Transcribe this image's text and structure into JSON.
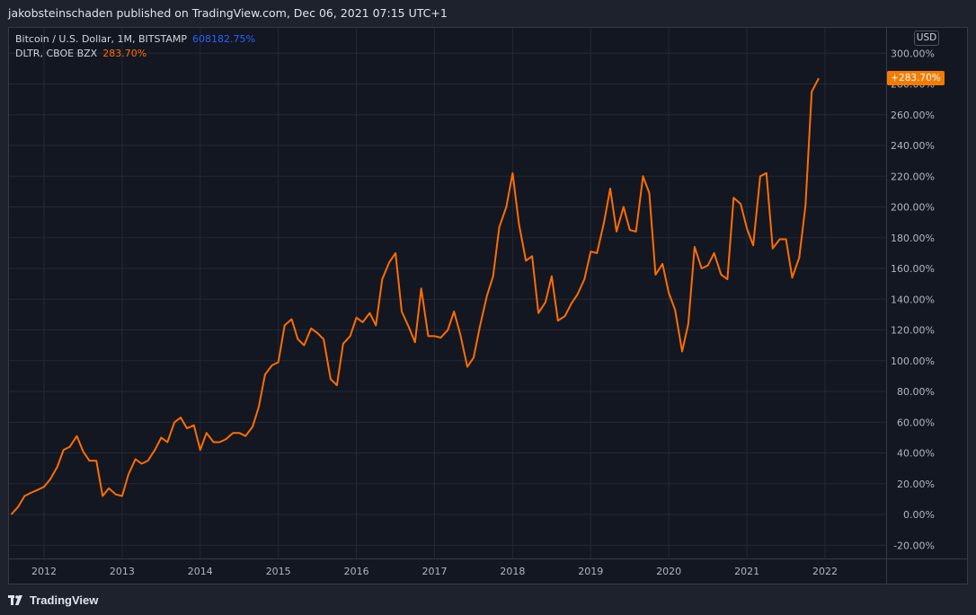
{
  "header": {
    "text": "jakobsteinschaden published on TradingView.com, Dec 06, 2021 07:15 UTC+1"
  },
  "legend": [
    {
      "name": "Bitcoin / U.S. Dollar, 1M, BITSTAMP",
      "value": "608182.75%",
      "color": "#2962ff"
    },
    {
      "name": "DLTR, CBOE BZX",
      "value": "283.70%",
      "color": "#ff6d00"
    }
  ],
  "currency_badge": "USD",
  "last_value_label": "+283.70%",
  "footer": {
    "brand": "TradingView"
  },
  "colors": {
    "series": "#ff6d00",
    "grid": "#242834",
    "axis_text": "#b2b5be",
    "background": "#131722"
  },
  "chart_data": {
    "type": "line",
    "title": "",
    "xlabel": "",
    "ylabel": "",
    "x_ticks": [
      "2012",
      "2013",
      "2014",
      "2015",
      "2016",
      "2017",
      "2018",
      "2019",
      "2020",
      "2021",
      "2022"
    ],
    "y_ticks": [
      "300.00%",
      "280.00%",
      "260.00%",
      "240.00%",
      "220.00%",
      "200.00%",
      "180.00%",
      "160.00%",
      "140.00%",
      "120.00%",
      "100.00%",
      "80.00%",
      "60.00%",
      "40.00%",
      "20.00%",
      "0.00%",
      "-20.00%"
    ],
    "ylim": [
      -30,
      310
    ],
    "xlim": [
      2011.58,
      2022.83
    ],
    "grid": true,
    "series": [
      {
        "name": "DLTR, CBOE BZX",
        "x": [
          2011.58,
          2011.67,
          2011.75,
          2011.83,
          2011.92,
          2012.0,
          2012.08,
          2012.17,
          2012.25,
          2012.33,
          2012.42,
          2012.5,
          2012.58,
          2012.67,
          2012.75,
          2012.83,
          2012.92,
          2013.0,
          2013.08,
          2013.17,
          2013.25,
          2013.33,
          2013.42,
          2013.5,
          2013.58,
          2013.67,
          2013.75,
          2013.83,
          2013.92,
          2014.0,
          2014.08,
          2014.17,
          2014.25,
          2014.33,
          2014.42,
          2014.5,
          2014.58,
          2014.67,
          2014.75,
          2014.83,
          2014.92,
          2015.0,
          2015.08,
          2015.17,
          2015.25,
          2015.33,
          2015.42,
          2015.5,
          2015.58,
          2015.67,
          2015.75,
          2015.83,
          2015.92,
          2016.0,
          2016.08,
          2016.17,
          2016.25,
          2016.33,
          2016.42,
          2016.5,
          2016.58,
          2016.67,
          2016.75,
          2016.83,
          2016.92,
          2017.0,
          2017.08,
          2017.17,
          2017.25,
          2017.33,
          2017.42,
          2017.5,
          2017.58,
          2017.67,
          2017.75,
          2017.83,
          2017.92,
          2018.0,
          2018.08,
          2018.17,
          2018.25,
          2018.33,
          2018.42,
          2018.5,
          2018.58,
          2018.67,
          2018.75,
          2018.83,
          2018.92,
          2019.0,
          2019.08,
          2019.17,
          2019.25,
          2019.33,
          2019.42,
          2019.5,
          2019.58,
          2019.67,
          2019.75,
          2019.83,
          2019.92,
          2020.0,
          2020.08,
          2020.17,
          2020.25,
          2020.33,
          2020.42,
          2020.5,
          2020.58,
          2020.67,
          2020.75,
          2020.83,
          2020.92,
          2021.0,
          2021.08,
          2021.17,
          2021.25,
          2021.33,
          2021.42,
          2021.5,
          2021.58,
          2021.67,
          2021.75,
          2021.83,
          2021.92
        ],
        "y": [
          0,
          5,
          12,
          14,
          16,
          18,
          23,
          31,
          42,
          44,
          51,
          41,
          35,
          35,
          12,
          17,
          13,
          12,
          26,
          36,
          33,
          35,
          42,
          50,
          47,
          60,
          63,
          56,
          58,
          42,
          53,
          47,
          47,
          49,
          53,
          53,
          51,
          57,
          70,
          91,
          97,
          99,
          123,
          127,
          114,
          110,
          121,
          118,
          114,
          88,
          84,
          111,
          116,
          128,
          125,
          131,
          123,
          153,
          164,
          170,
          132,
          122,
          112,
          147,
          116,
          116,
          115,
          120,
          132,
          117,
          96,
          102,
          122,
          142,
          155,
          187,
          200,
          222,
          189,
          165,
          168,
          131,
          138,
          155,
          126,
          129,
          137,
          143,
          153,
          171,
          170,
          190,
          212,
          184,
          200,
          185,
          184,
          220,
          209,
          156,
          163,
          144,
          133,
          106,
          124,
          174,
          160,
          162,
          170,
          156,
          153,
          206,
          202,
          186,
          175,
          220,
          222,
          173,
          179,
          179,
          154,
          167,
          201,
          275,
          283.7
        ]
      }
    ]
  }
}
